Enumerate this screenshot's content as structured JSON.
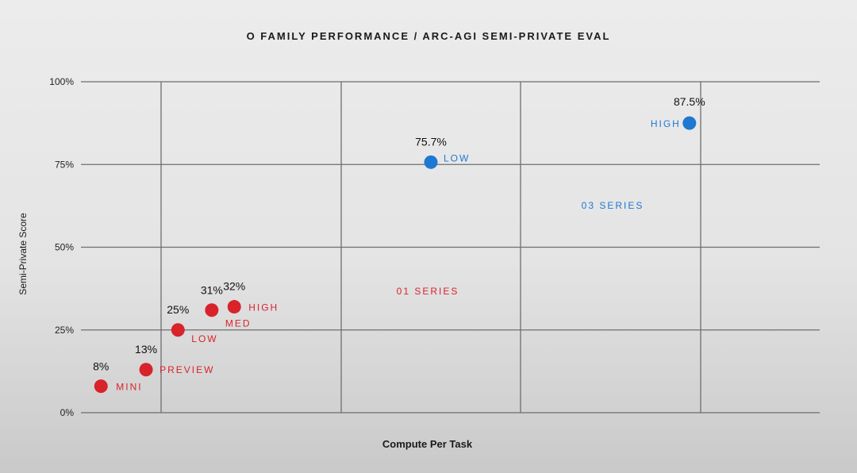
{
  "chart_data": {
    "type": "scatter",
    "title": "O FAMILY PERFORMANCE / ARC-AGI SEMI-PRIVATE EVAL",
    "xlabel": "Compute Per Task",
    "ylabel": "Semi-Private Score",
    "ylim": [
      0,
      100
    ],
    "y_ticks": [
      "0%",
      "25%",
      "50%",
      "75%",
      "100%"
    ],
    "grid": true,
    "x_scale": "unlabeled",
    "series": [
      {
        "name": "01 SERIES",
        "color": "#d8232a",
        "points": [
          {
            "label": "MINI",
            "value_label": "8%",
            "y": 8,
            "x": 1.0
          },
          {
            "label": "PREVIEW",
            "value_label": "13%",
            "y": 13,
            "x": 1.45
          },
          {
            "label": "LOW",
            "value_label": "25%",
            "y": 25,
            "x": 1.75
          },
          {
            "label": "MED",
            "value_label": "31%",
            "y": 31,
            "x": 2.05
          },
          {
            "label": "HIGH",
            "value_label": "32%",
            "y": 32,
            "x": 2.25
          }
        ]
      },
      {
        "name": "03 SERIES",
        "color": "#1f78d1",
        "points": [
          {
            "label": "LOW",
            "value_label": "75.7%",
            "y": 75.7,
            "x": 4.0
          },
          {
            "label": "HIGH",
            "value_label": "87.5%",
            "y": 87.5,
            "x": 6.3
          }
        ]
      }
    ]
  }
}
